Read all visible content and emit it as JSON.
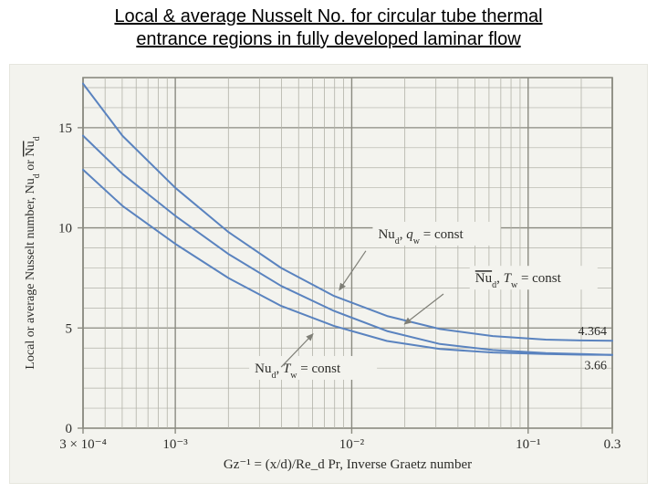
{
  "title_line1": "Local & average Nusselt No. for circular tube thermal",
  "title_line2": "entrance regions in fully developed laminar flow",
  "chart": {
    "type": "line",
    "background_color": "#f3f3ee",
    "grid_color": "#8a8a80",
    "grid_minor_color": "#b2b2a8",
    "curve_color": "#5a83bf",
    "curve_width": 2.0,
    "text_color": "#2d2d2a",
    "tick_font_size": 15,
    "label_font_family": "Times New Roman",
    "y_axis": {
      "min": 0,
      "max": 17.5,
      "ticks": [
        0,
        5,
        10,
        15
      ],
      "label": "Local or average Nusselt number, Nu_d or N̅u̅_d",
      "label_fontsize": 14
    },
    "x_axis": {
      "type": "log",
      "min_exp": -3.523,
      "max_exp": -0.523,
      "major_ticks": [
        {
          "exp": -3.523,
          "label": "3 × 10⁻⁴"
        },
        {
          "exp": -3.0,
          "label": "10⁻³"
        },
        {
          "exp": -2.0,
          "label": "10⁻²"
        },
        {
          "exp": -1.0,
          "label": "10⁻¹"
        },
        {
          "exp": -0.523,
          "label": "0.3"
        }
      ],
      "label": "Gz⁻¹ = (x/d)/Re_d Pr, Inverse Graetz number",
      "label_fontsize": 15
    },
    "right_asymptote_labels": {
      "upper": "4.364",
      "lower": "3.66"
    },
    "curves": {
      "qw_const": {
        "callout": "Nu_d, q_w = const",
        "asymptote": 4.364,
        "points": [
          {
            "exp": -3.523,
            "nu": 17.2
          },
          {
            "exp": -3.3,
            "nu": 14.6
          },
          {
            "exp": -3.0,
            "nu": 12.0
          },
          {
            "exp": -2.7,
            "nu": 9.8
          },
          {
            "exp": -2.4,
            "nu": 8.0
          },
          {
            "exp": -2.1,
            "nu": 6.6
          },
          {
            "exp": -1.8,
            "nu": 5.6
          },
          {
            "exp": -1.5,
            "nu": 4.95
          },
          {
            "exp": -1.2,
            "nu": 4.6
          },
          {
            "exp": -0.9,
            "nu": 4.42
          },
          {
            "exp": -0.7,
            "nu": 4.38
          },
          {
            "exp": -0.523,
            "nu": 4.364
          }
        ]
      },
      "Tw_avg_const": {
        "callout": "N̅u̅_d, T_w = const",
        "asymptote": 3.66,
        "points": [
          {
            "exp": -3.523,
            "nu": 14.6
          },
          {
            "exp": -3.3,
            "nu": 12.7
          },
          {
            "exp": -3.0,
            "nu": 10.6
          },
          {
            "exp": -2.7,
            "nu": 8.7
          },
          {
            "exp": -2.4,
            "nu": 7.1
          },
          {
            "exp": -2.1,
            "nu": 5.85
          },
          {
            "exp": -1.8,
            "nu": 4.85
          },
          {
            "exp": -1.5,
            "nu": 4.2
          },
          {
            "exp": -1.2,
            "nu": 3.9
          },
          {
            "exp": -0.9,
            "nu": 3.75
          },
          {
            "exp": -0.7,
            "nu": 3.7
          },
          {
            "exp": -0.523,
            "nu": 3.66
          }
        ]
      },
      "Tw_local_const": {
        "callout": "Nu_d, T_w = const",
        "asymptote": 3.66,
        "points": [
          {
            "exp": -3.523,
            "nu": 12.9
          },
          {
            "exp": -3.3,
            "nu": 11.1
          },
          {
            "exp": -3.0,
            "nu": 9.2
          },
          {
            "exp": -2.7,
            "nu": 7.5
          },
          {
            "exp": -2.4,
            "nu": 6.1
          },
          {
            "exp": -2.1,
            "nu": 5.1
          },
          {
            "exp": -1.8,
            "nu": 4.35
          },
          {
            "exp": -1.5,
            "nu": 3.95
          },
          {
            "exp": -1.2,
            "nu": 3.78
          },
          {
            "exp": -0.9,
            "nu": 3.7
          },
          {
            "exp": -0.7,
            "nu": 3.67
          },
          {
            "exp": -0.523,
            "nu": 3.66
          }
        ]
      }
    },
    "callout_boxes": {
      "qw_const": {
        "exp": -1.85,
        "nu": 9.3
      },
      "Tw_avg_const": {
        "exp": -1.3,
        "nu": 7.1
      },
      "Tw_local_const": {
        "exp": -2.55,
        "nu": 2.6
      }
    },
    "callout_fontsize": 15,
    "leaders": {
      "qw_const": {
        "from": {
          "exp": -1.92,
          "nu": 8.85
        },
        "to": {
          "exp": -2.07,
          "nu": 6.9
        }
      },
      "Tw_avg_const": {
        "from": {
          "exp": -1.48,
          "nu": 6.7
        },
        "to": {
          "exp": -1.7,
          "nu": 5.2
        }
      },
      "Tw_local_const": {
        "from": {
          "exp": -2.4,
          "nu": 3.05
        },
        "to": {
          "exp": -2.22,
          "nu": 4.7
        }
      }
    }
  }
}
